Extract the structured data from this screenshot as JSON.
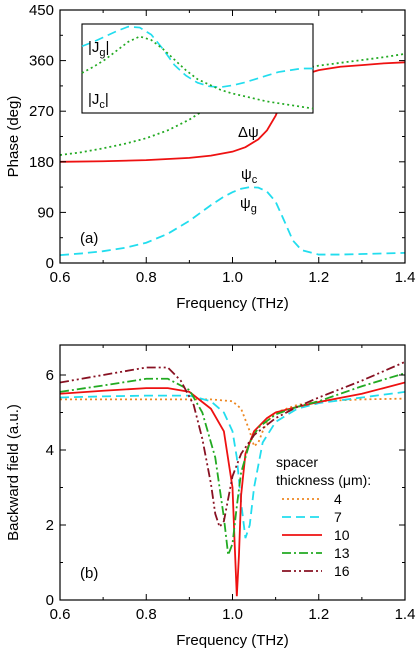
{
  "chart_data": [
    {
      "type": "line",
      "panel_label": "(a)",
      "xlabel": "Frequency (THz)",
      "ylabel": "Phase (deg)",
      "xlim": [
        0.6,
        1.4
      ],
      "ylim": [
        0,
        450
      ],
      "xticks": [
        "0.6",
        "0.8",
        "1.0",
        "1.2",
        "1.4"
      ],
      "yticks": [
        "0",
        "90",
        "180",
        "270",
        "360",
        "450"
      ],
      "grid": false,
      "series": [
        {
          "name": "ψc",
          "color": "#22aa22",
          "style": "dotted",
          "x": [
            0.6,
            0.65,
            0.7,
            0.75,
            0.8,
            0.85,
            0.9,
            0.95,
            1.0,
            1.05,
            1.1,
            1.15,
            1.2,
            1.25,
            1.3,
            1.35,
            1.4
          ],
          "y": [
            192,
            197,
            204,
            212,
            222,
            236,
            255,
            280,
            305,
            323,
            335,
            344,
            351,
            356,
            361,
            366,
            372
          ]
        },
        {
          "name": "Δψ",
          "color": "#ee1111",
          "style": "solid",
          "x": [
            0.6,
            0.7,
            0.8,
            0.9,
            0.95,
            1.0,
            1.03,
            1.06,
            1.08,
            1.1,
            1.12,
            1.14,
            1.16,
            1.2,
            1.25,
            1.3,
            1.35,
            1.4
          ],
          "y": [
            180,
            181,
            183,
            187,
            191,
            198,
            206,
            220,
            236,
            262,
            298,
            322,
            334,
            343,
            349,
            352,
            355,
            357
          ]
        },
        {
          "name": "ψg",
          "color": "#22ddee",
          "style": "dashed",
          "x": [
            0.6,
            0.65,
            0.7,
            0.75,
            0.8,
            0.85,
            0.9,
            0.95,
            0.98,
            1.0,
            1.02,
            1.04,
            1.06,
            1.08,
            1.1,
            1.12,
            1.14,
            1.16,
            1.2,
            1.25,
            1.3,
            1.35,
            1.4
          ],
          "y": [
            14,
            17,
            21,
            27,
            36,
            52,
            75,
            103,
            118,
            126,
            132,
            135,
            134,
            127,
            109,
            75,
            40,
            23,
            15,
            15,
            16,
            17,
            18
          ]
        }
      ],
      "annotations": [
        {
          "text": "ψ",
          "sub": "c",
          "x": 1.0,
          "y": 305
        },
        {
          "text": "Δψ",
          "sub": "",
          "x": 1.0,
          "y": 237
        },
        {
          "text": "ψ",
          "sub": "g",
          "x": 1.0,
          "y": 74
        }
      ],
      "inset": {
        "labels": [
          {
            "text": "|J",
            "sub": "g",
            "tail": "|"
          },
          {
            "text": "|J",
            "sub": "c",
            "tail": "|"
          }
        ],
        "series": [
          {
            "color": "#22ddee",
            "style": "dashed",
            "x": [
              0.0,
              0.05,
              0.1,
              0.15,
              0.2,
              0.25,
              0.3,
              0.35,
              0.4,
              0.45,
              0.5,
              0.55,
              0.6,
              0.65,
              0.7,
              0.75,
              0.8,
              0.85,
              0.9,
              0.95,
              1.0
            ],
            "y": [
              0.75,
              0.8,
              0.86,
              0.92,
              0.97,
              0.96,
              0.88,
              0.72,
              0.54,
              0.42,
              0.34,
              0.3,
              0.29,
              0.31,
              0.34,
              0.38,
              0.42,
              0.46,
              0.48,
              0.5,
              0.5
            ]
          },
          {
            "color": "#22aa22",
            "style": "dotted",
            "x": [
              0.0,
              0.05,
              0.1,
              0.15,
              0.2,
              0.25,
              0.3,
              0.35,
              0.4,
              0.45,
              0.5,
              0.55,
              0.6,
              0.65,
              0.7,
              0.75,
              0.8,
              0.85,
              0.9,
              0.95,
              1.0
            ],
            "y": [
              0.45,
              0.52,
              0.6,
              0.7,
              0.8,
              0.86,
              0.82,
              0.72,
              0.6,
              0.48,
              0.38,
              0.32,
              0.26,
              0.22,
              0.19,
              0.16,
              0.13,
              0.11,
              0.09,
              0.07,
              0.05
            ]
          }
        ]
      }
    },
    {
      "type": "line",
      "panel_label": "(b)",
      "xlabel": "Frequency (THz)",
      "ylabel": "Backward field (a.u.)",
      "xlim": [
        0.6,
        1.4
      ],
      "ylim": [
        0,
        6.8
      ],
      "xticks": [
        "0.6",
        "0.8",
        "1.0",
        "1.2",
        "1.4"
      ],
      "yticks": [
        "0",
        "2",
        "4",
        "6"
      ],
      "grid": false,
      "legend": {
        "title_lines": [
          "spacer",
          "thickness (μm):"
        ],
        "placement": "bottom-right"
      },
      "series": [
        {
          "name": "4",
          "color": "#ee8822",
          "style": "dotted",
          "x": [
            0.6,
            0.7,
            0.8,
            0.9,
            0.95,
            1.0,
            1.02,
            1.04,
            1.05,
            1.06,
            1.07,
            1.08,
            1.1,
            1.15,
            1.2,
            1.3,
            1.4
          ],
          "y": [
            5.35,
            5.35,
            5.35,
            5.35,
            5.35,
            5.3,
            5.1,
            4.5,
            4.1,
            4.2,
            4.5,
            4.75,
            5.0,
            5.2,
            5.3,
            5.35,
            5.37
          ]
        },
        {
          "name": "7",
          "color": "#22ddee",
          "style": "dashed",
          "x": [
            0.6,
            0.7,
            0.8,
            0.9,
            0.95,
            0.98,
            1.0,
            1.01,
            1.02,
            1.03,
            1.04,
            1.05,
            1.07,
            1.1,
            1.15,
            1.2,
            1.3,
            1.4
          ],
          "y": [
            5.4,
            5.43,
            5.45,
            5.45,
            5.3,
            5.0,
            4.5,
            3.8,
            2.6,
            1.65,
            2.0,
            3.0,
            4.2,
            4.75,
            5.1,
            5.25,
            5.4,
            5.55
          ]
        },
        {
          "name": "10",
          "color": "#ee1111",
          "style": "solid",
          "x": [
            0.6,
            0.7,
            0.8,
            0.85,
            0.9,
            0.95,
            0.98,
            1.0,
            1.005,
            1.01,
            1.015,
            1.02,
            1.03,
            1.05,
            1.08,
            1.1,
            1.15,
            1.2,
            1.3,
            1.4
          ],
          "y": [
            5.5,
            5.58,
            5.65,
            5.65,
            5.55,
            5.1,
            4.5,
            3.0,
            1.5,
            0.1,
            1.2,
            2.8,
            3.9,
            4.5,
            4.85,
            5.0,
            5.15,
            5.28,
            5.5,
            5.8
          ]
        },
        {
          "name": "13",
          "color": "#22aa22",
          "style": "dashdot",
          "x": [
            0.6,
            0.7,
            0.8,
            0.85,
            0.9,
            0.93,
            0.96,
            0.98,
            0.99,
            1.0,
            1.01,
            1.02,
            1.04,
            1.06,
            1.1,
            1.15,
            1.2,
            1.3,
            1.4
          ],
          "y": [
            5.55,
            5.72,
            5.9,
            5.9,
            5.6,
            5.0,
            3.8,
            2.2,
            1.2,
            1.5,
            2.5,
            3.4,
            4.2,
            4.6,
            4.95,
            5.15,
            5.3,
            5.7,
            6.05
          ]
        },
        {
          "name": "16",
          "color": "#881122",
          "style": "dashdotdot",
          "x": [
            0.6,
            0.7,
            0.8,
            0.85,
            0.88,
            0.91,
            0.93,
            0.95,
            0.96,
            0.97,
            0.98,
            0.99,
            1.0,
            1.02,
            1.05,
            1.1,
            1.15,
            1.2,
            1.3,
            1.4
          ],
          "y": [
            5.8,
            6.0,
            6.2,
            6.2,
            5.85,
            5.2,
            4.3,
            3.1,
            2.3,
            1.95,
            2.1,
            2.7,
            3.3,
            3.9,
            4.4,
            4.85,
            5.15,
            5.4,
            5.85,
            6.35
          ]
        }
      ]
    }
  ]
}
